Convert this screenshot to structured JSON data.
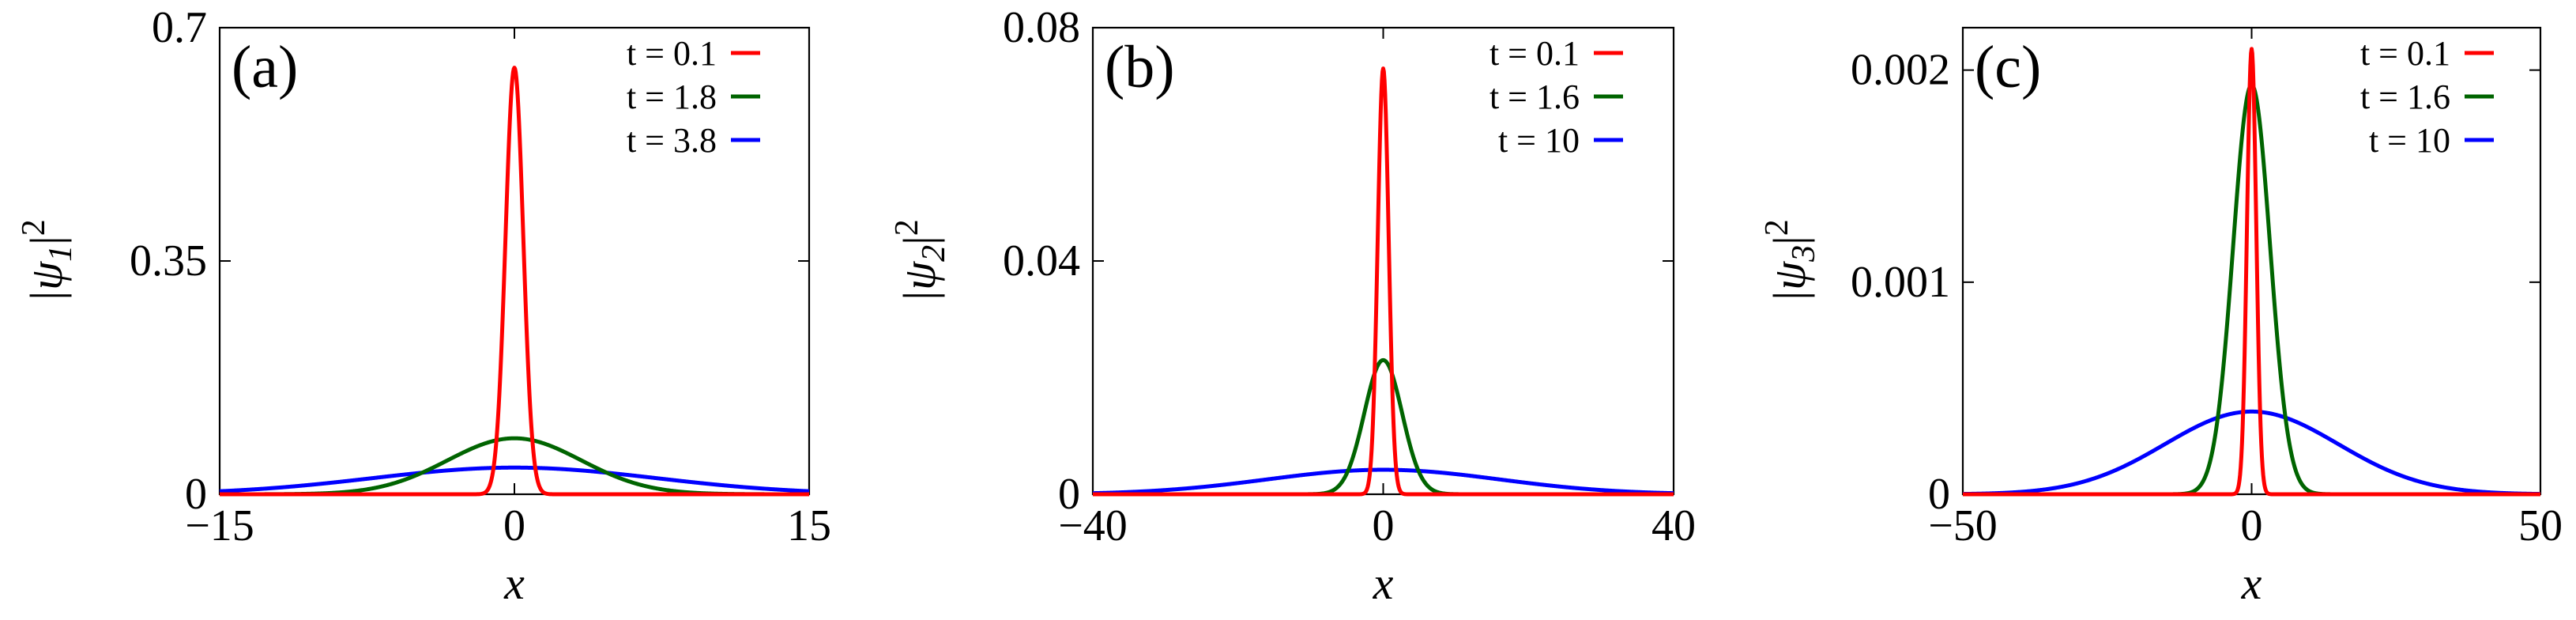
{
  "chart_data": [
    {
      "type": "line",
      "panel_label": "(a)",
      "xlabel": "x",
      "ylabel_base": "|ψ",
      "ylabel_sub": "1",
      "ylabel_sup": "2",
      "xlim": [
        -15,
        15
      ],
      "ylim": [
        0,
        0.7
      ],
      "xticks": [
        -15,
        0,
        15
      ],
      "xtick_labels": [
        "−15",
        "0",
        "15"
      ],
      "yticks": [
        0,
        0.35,
        0.7
      ],
      "ytick_labels": [
        "0",
        "0.35",
        "0.7"
      ],
      "legend_position": "top-right",
      "series": [
        {
          "name": "t = 0.1",
          "color": "#ff0000",
          "amplitude": 0.64,
          "width": 0.45,
          "center": 0
        },
        {
          "name": "t = 1.8",
          "color": "#006400",
          "amplitude": 0.084,
          "width": 3.4,
          "center": 0
        },
        {
          "name": "t = 3.8",
          "color": "#0000ff",
          "amplitude": 0.04,
          "width": 7.2,
          "center": 0
        }
      ]
    },
    {
      "type": "line",
      "panel_label": "(b)",
      "xlabel": "x",
      "ylabel_base": "|ψ",
      "ylabel_sub": "2",
      "ylabel_sup": "2",
      "xlim": [
        -40,
        40
      ],
      "ylim": [
        0,
        0.08
      ],
      "xticks": [
        -40,
        0,
        40
      ],
      "xtick_labels": [
        "−40",
        "0",
        "40"
      ],
      "yticks": [
        0,
        0.04,
        0.08
      ],
      "ytick_labels": [
        "0",
        "0.04",
        "0.08"
      ],
      "legend_position": "top-right",
      "series": [
        {
          "name": "t = 0.1",
          "color": "#ff0000",
          "amplitude": 0.073,
          "width": 0.75,
          "center": 0
        },
        {
          "name": "t = 1.6",
          "color": "#006400",
          "amplitude": 0.023,
          "width": 2.6,
          "center": 0
        },
        {
          "name": "t = 10",
          "color": "#0000ff",
          "amplitude": 0.0042,
          "width": 16,
          "center": 0
        }
      ]
    },
    {
      "type": "line",
      "panel_label": "(c)",
      "xlabel": "x",
      "ylabel_base": "|ψ",
      "ylabel_sub": "3",
      "ylabel_sup": "2",
      "xlim": [
        -50,
        50
      ],
      "ylim": [
        0,
        0.0022
      ],
      "xticks": [
        -50,
        0,
        50
      ],
      "xtick_labels": [
        "−50",
        "0",
        "50"
      ],
      "yticks": [
        0,
        0.001,
        0.002
      ],
      "ytick_labels": [
        "0",
        "0.001",
        "0.002"
      ],
      "legend_position": "top-right",
      "series": [
        {
          "name": "t = 0.1",
          "color": "#ff0000",
          "amplitude": 0.0021,
          "width": 0.8,
          "center": 0
        },
        {
          "name": "t = 1.6",
          "color": "#006400",
          "amplitude": 0.00193,
          "width": 3.2,
          "center": 0
        },
        {
          "name": "t = 10",
          "color": "#0000ff",
          "amplitude": 0.00039,
          "width": 15,
          "center": 0
        }
      ]
    }
  ]
}
